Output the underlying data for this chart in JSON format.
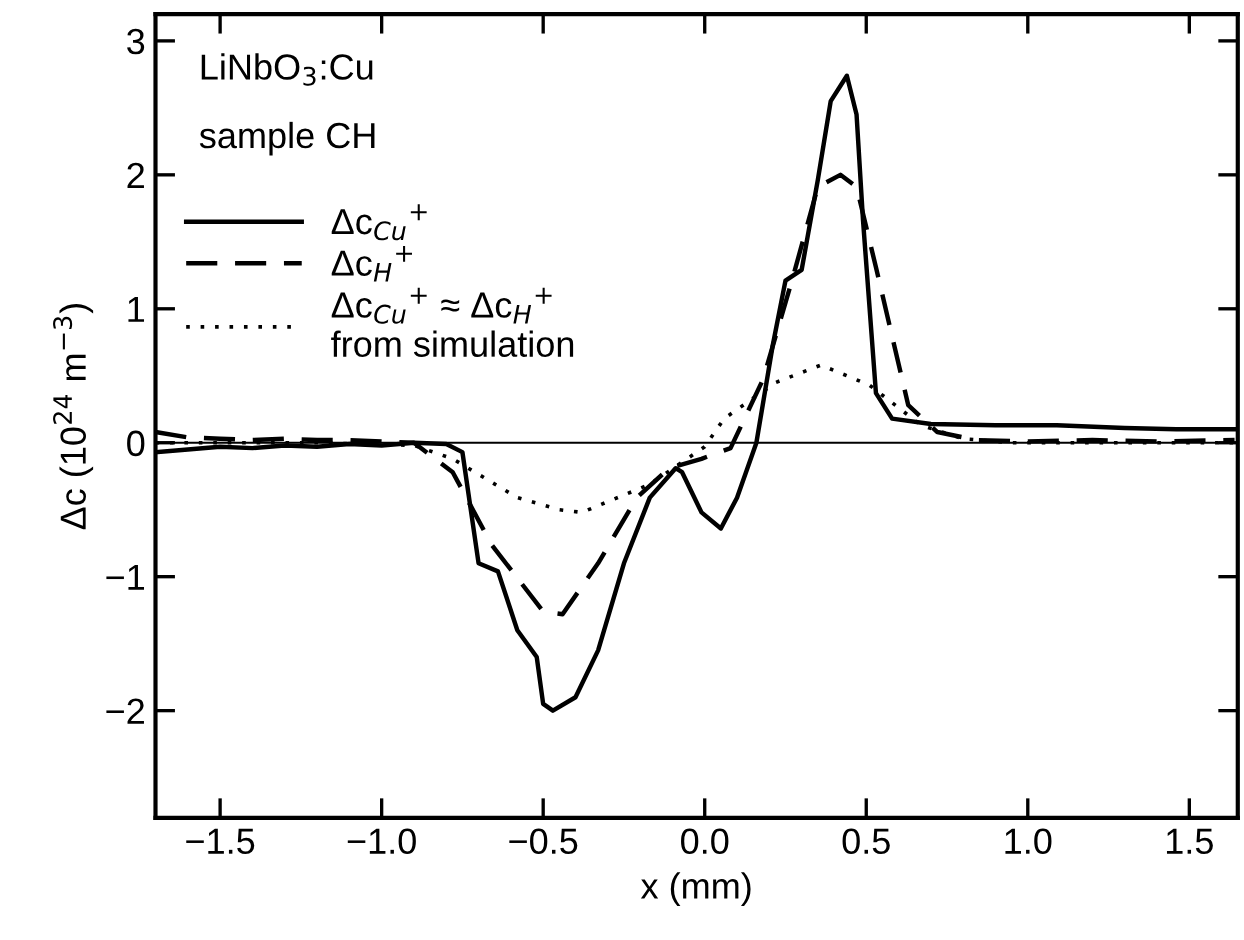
{
  "chart_data": {
    "type": "line",
    "xlabel": "x (mm)",
    "ylabel": "Δc (10$^{24}$ m$^{−3}$)",
    "annotations": [
      "LiNbO$_{3}$:Cu",
      "sample CH"
    ],
    "xlim": [
      -1.7,
      1.65
    ],
    "xticks": [
      {
        "value": -1.5,
        "label": "−1.5"
      },
      {
        "value": -1.0,
        "label": "−1.0"
      },
      {
        "value": -0.5,
        "label": "−0.5"
      },
      {
        "value": 0.0,
        "label": "0.0"
      },
      {
        "value": 0.5,
        "label": "0.5"
      },
      {
        "value": 1.0,
        "label": "1.0"
      },
      {
        "value": 1.5,
        "label": "1.5"
      }
    ],
    "ylim": [
      -2.8,
      3.2
    ],
    "yticks": [
      {
        "value": -2,
        "label": "−2"
      },
      {
        "value": -1,
        "label": "−1"
      },
      0,
      1,
      2,
      3
    ],
    "ref_lines": [
      {
        "axis": "y",
        "value": 0,
        "color": "#000000",
        "line_style": "solid"
      }
    ],
    "legend": "top left",
    "grid": false,
    "marker": "none",
    "series": [
      {
        "name": "Δc$_{Cu}$$^{+}$",
        "color": "#000000",
        "line_style": "solid",
        "x": [
          -1.7,
          -1.6,
          -1.5,
          -1.4,
          -1.3,
          -1.2,
          -1.1,
          -1.0,
          -0.9,
          -0.8,
          -0.75,
          -0.7,
          -0.64,
          -0.58,
          -0.52,
          -0.5,
          -0.47,
          -0.4,
          -0.33,
          -0.25,
          -0.17,
          -0.09,
          -0.07,
          -0.01,
          0.05,
          0.1,
          0.16,
          0.21,
          0.25,
          0.3,
          0.35,
          0.39,
          0.44,
          0.47,
          0.49,
          0.53,
          0.58,
          0.7,
          0.9,
          1.09,
          1.3,
          1.46,
          1.64
        ],
        "values": [
          -0.07,
          -0.05,
          -0.03,
          -0.04,
          -0.02,
          -0.03,
          -0.01,
          -0.02,
          0.0,
          -0.01,
          -0.07,
          -0.9,
          -0.96,
          -1.4,
          -1.6,
          -1.95,
          -2.0,
          -1.9,
          -1.55,
          -0.9,
          -0.41,
          -0.19,
          -0.22,
          -0.52,
          -0.64,
          -0.41,
          0.0,
          0.72,
          1.21,
          1.29,
          1.96,
          2.55,
          2.74,
          2.45,
          1.66,
          0.37,
          0.18,
          0.14,
          0.13,
          0.13,
          0.11,
          0.1,
          0.1
        ]
      },
      {
        "name": "Δc$_{H}$$^{+}$",
        "color": "#000000",
        "line_style": "dashed",
        "x": [
          -1.7,
          -1.6,
          -1.5,
          -1.4,
          -1.3,
          -1.2,
          -1.1,
          -1.0,
          -0.9,
          -0.78,
          -0.66,
          -0.5,
          -0.44,
          -0.33,
          -0.21,
          -0.11,
          -0.01,
          0.08,
          0.18,
          0.27,
          0.35,
          0.42,
          0.47,
          0.53,
          0.63,
          0.72,
          0.84,
          1.0,
          1.2,
          1.4,
          1.64
        ],
        "values": [
          0.08,
          0.04,
          0.03,
          0.02,
          0.03,
          0.02,
          0.02,
          0.01,
          0.0,
          -0.22,
          -0.76,
          -1.26,
          -1.28,
          -0.9,
          -0.41,
          -0.19,
          -0.12,
          -0.04,
          0.47,
          1.21,
          1.91,
          2.0,
          1.91,
          1.31,
          0.28,
          0.08,
          0.02,
          0.01,
          0.02,
          0.01,
          0.02
        ]
      },
      {
        "name": "Δc$_{Cu}$$^{+}$ ≈ Δc$_{H}$$^{+}$\nfrom simulation",
        "color": "#000000",
        "line_style": "dotted",
        "x": [
          -1.7,
          -1.2,
          -0.9,
          -0.78,
          -0.58,
          -0.45,
          -0.38,
          -0.17,
          0.0,
          0.06,
          0.22,
          0.36,
          0.51,
          0.67,
          0.8,
          0.95,
          1.2,
          1.64
        ],
        "values": [
          0.0,
          0.0,
          -0.02,
          -0.12,
          -0.41,
          -0.5,
          -0.52,
          -0.31,
          -0.03,
          0.18,
          0.45,
          0.58,
          0.43,
          0.13,
          0.03,
          0.0,
          0.0,
          0.0
        ]
      }
    ]
  }
}
